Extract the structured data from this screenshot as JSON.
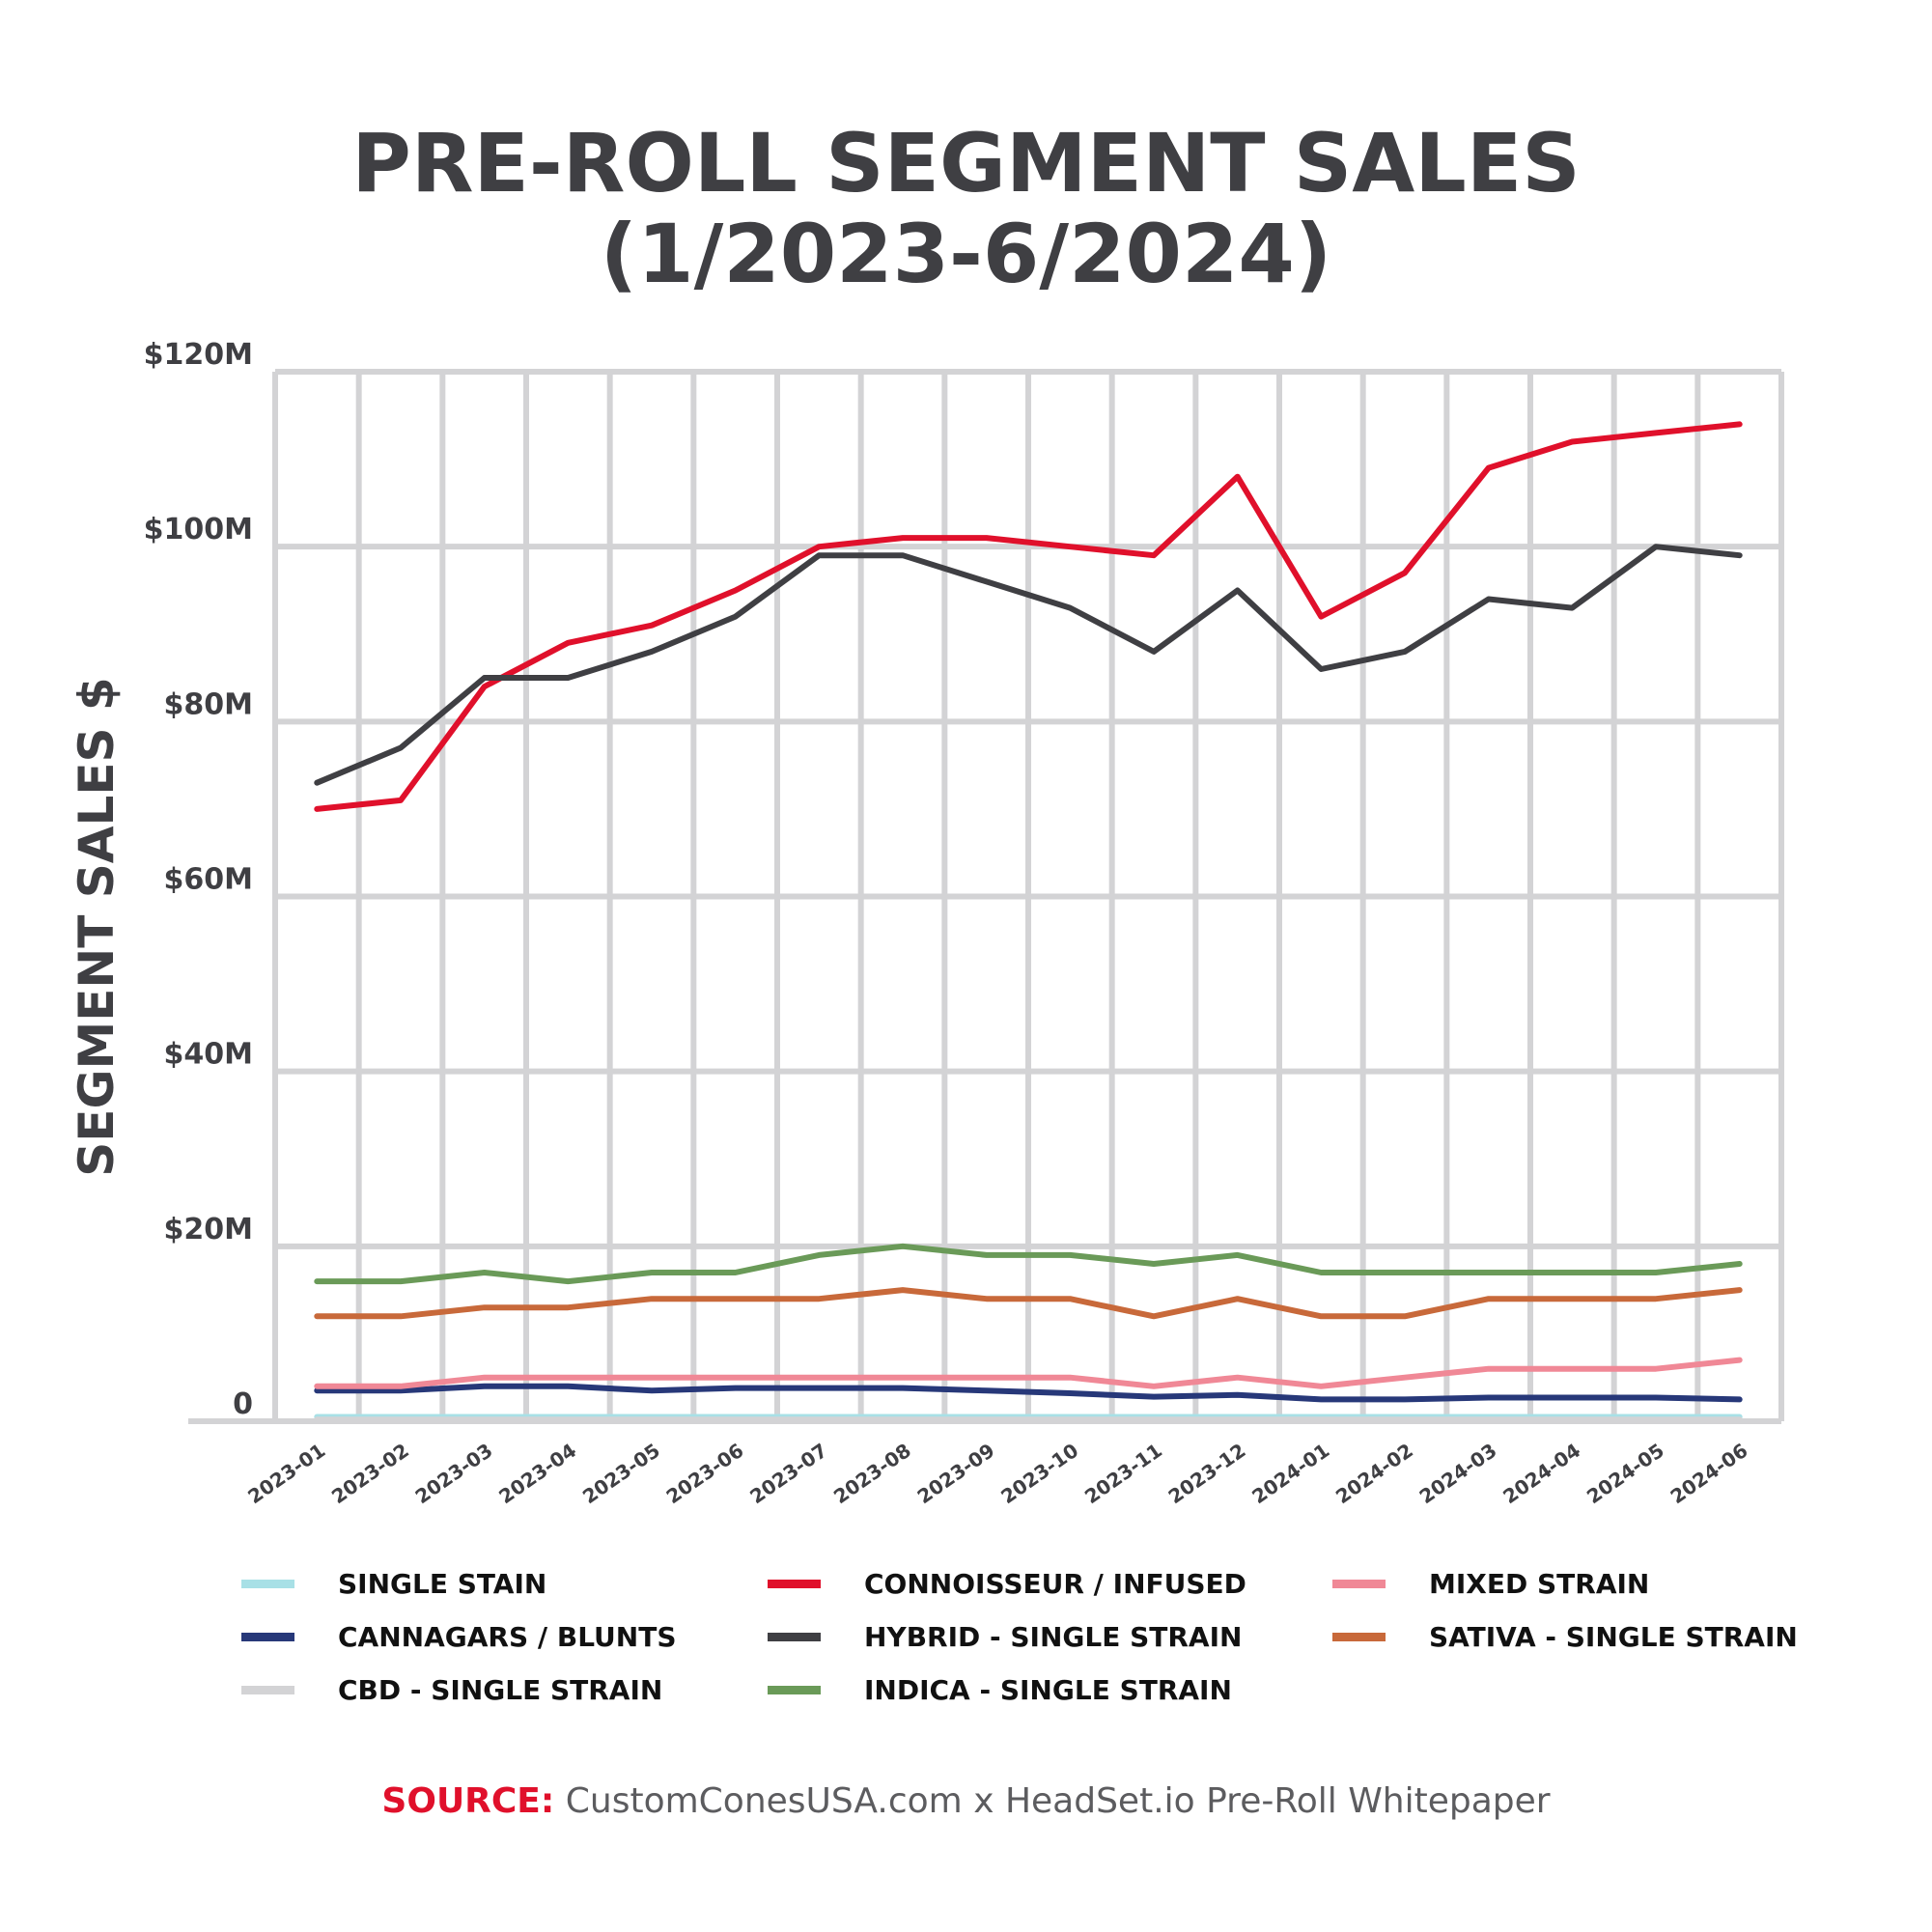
{
  "title_line1": "PRE-ROLL SEGMENT SALES",
  "title_line2": "(1/2023-6/2024)",
  "source": {
    "key": "SOURCE:",
    "text": " CustomConesUSA.com x HeadSet.io Pre-Roll Whitepaper"
  },
  "chart_data": {
    "type": "line",
    "title": "PRE-ROLL SEGMENT SALES (1/2023-6/2024)",
    "xlabel": "",
    "ylabel": "SEGMENT SALES $",
    "ylim": [
      0,
      120
    ],
    "y_unit": "millions USD",
    "yticks": [
      0,
      20,
      40,
      60,
      80,
      100,
      120
    ],
    "ytick_labels": [
      "0",
      "$20M",
      "$40M",
      "$60M",
      "$80M",
      "$100M",
      "$120M"
    ],
    "grid": true,
    "legend_position": "bottom",
    "categories": [
      "2023-01",
      "2023-02",
      "2023-03",
      "2023-04",
      "2023-05",
      "2023-06",
      "2023-07",
      "2023-08",
      "2023-09",
      "2023-10",
      "2023-11",
      "2023-12",
      "2024-01",
      "2024-02",
      "2024-03",
      "2024-04",
      "2024-05",
      "2024-06"
    ],
    "series": [
      {
        "name": "SINGLE STAIN",
        "color": "#a8e0e6",
        "values": [
          0.5,
          0.5,
          0.5,
          0.5,
          0.5,
          0.5,
          0.5,
          0.5,
          0.5,
          0.5,
          0.5,
          0.5,
          0.5,
          0.5,
          0.5,
          0.5,
          0.5,
          0.5
        ]
      },
      {
        "name": "CANNAGARS / BLUNTS",
        "color": "#273879",
        "values": [
          3.5,
          3.5,
          4,
          4,
          3.5,
          3.8,
          3.8,
          3.8,
          3.5,
          3.2,
          2.8,
          3,
          2.5,
          2.5,
          2.7,
          2.7,
          2.7,
          2.5
        ]
      },
      {
        "name": "CBD - SINGLE STRAIN",
        "color": "#d3d3d5",
        "values": [
          0.2,
          0.2,
          0.2,
          0.2,
          0.2,
          0.2,
          0.2,
          0.2,
          0.2,
          0.2,
          0.2,
          0.2,
          0.2,
          0.2,
          0.2,
          0.2,
          0.2,
          0.2
        ]
      },
      {
        "name": "CONNOISSEUR / INFUSED",
        "color": "#e0102b",
        "values": [
          70,
          71,
          84,
          89,
          91,
          95,
          100,
          101,
          101,
          100,
          99,
          108,
          92,
          97,
          109,
          112,
          113,
          114
        ]
      },
      {
        "name": "HYBRID - SINGLE STRAIN",
        "color": "#3f3f43",
        "values": [
          73,
          77,
          85,
          85,
          88,
          92,
          99,
          99,
          96,
          93,
          88,
          95,
          86,
          88,
          94,
          93,
          100,
          99
        ]
      },
      {
        "name": "INDICA - SINGLE STRAIN",
        "color": "#6a9a58",
        "values": [
          16,
          16,
          17,
          16,
          17,
          17,
          19,
          20,
          19,
          19,
          18,
          19,
          17,
          17,
          17,
          17,
          17,
          18
        ]
      },
      {
        "name": "MIXED STRAIN",
        "color": "#f08896",
        "values": [
          4,
          4,
          5,
          5,
          5,
          5,
          5,
          5,
          5,
          5,
          4,
          5,
          4,
          5,
          6,
          6,
          6,
          7
        ]
      },
      {
        "name": "SATIVA - SINGLE STRAIN",
        "color": "#c8693a",
        "values": [
          12,
          12,
          13,
          13,
          14,
          14,
          14,
          15,
          14,
          14,
          12,
          14,
          12,
          12,
          14,
          14,
          14,
          15
        ]
      }
    ]
  }
}
